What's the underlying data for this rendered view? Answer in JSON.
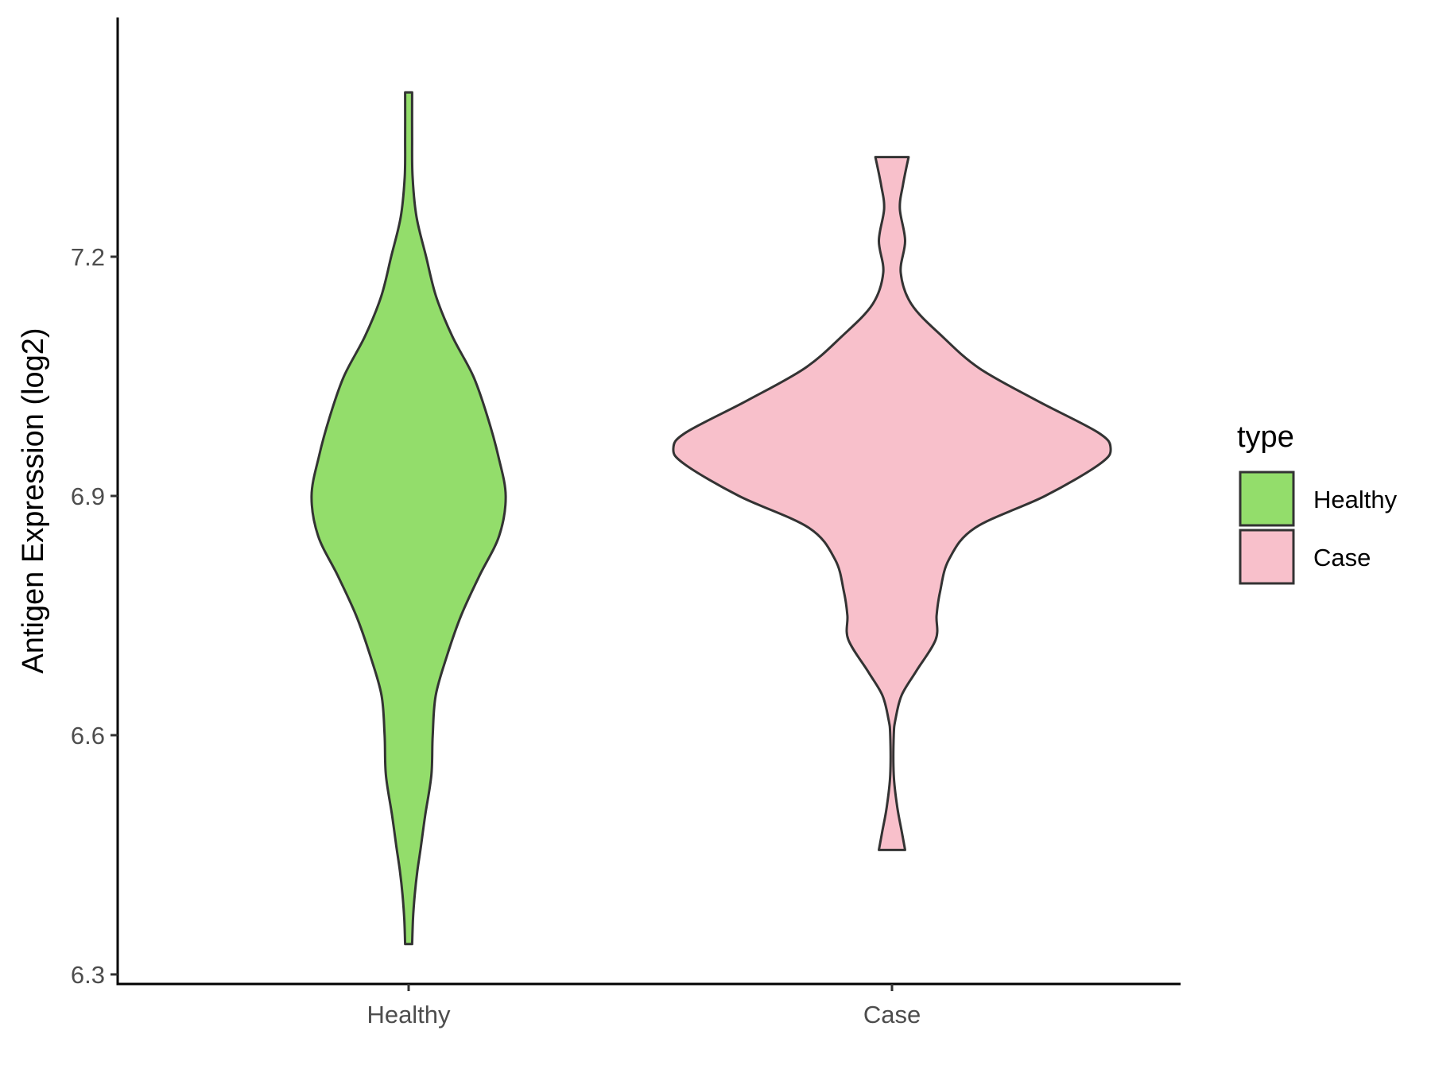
{
  "chart_data": {
    "type": "violin",
    "ylabel": "Antigen Expression (log2)",
    "xlabel": "",
    "categories": [
      "Healthy",
      "Case"
    ],
    "ylim": [
      6.288,
      7.5
    ],
    "yticks": [
      6.3,
      6.6,
      6.9,
      7.2
    ],
    "ytick_labels": [
      "6.3",
      "6.6",
      "6.9",
      "7.2"
    ],
    "grid": false,
    "legend": {
      "title": "type",
      "position": "right",
      "entries": [
        {
          "label": "Healthy",
          "color": "#93DD6B"
        },
        {
          "label": "Case",
          "color": "#F8C0CB"
        }
      ]
    },
    "series": [
      {
        "name": "Healthy",
        "color": "#93DD6B",
        "min": 6.338,
        "max": 7.406,
        "density": [
          [
            6.338,
            0.008
          ],
          [
            6.37,
            0.01
          ],
          [
            6.4,
            0.014
          ],
          [
            6.43,
            0.02
          ],
          [
            6.46,
            0.028
          ],
          [
            6.5,
            0.038
          ],
          [
            6.55,
            0.052
          ],
          [
            6.6,
            0.055
          ],
          [
            6.65,
            0.062
          ],
          [
            6.7,
            0.088
          ],
          [
            6.75,
            0.12
          ],
          [
            6.8,
            0.162
          ],
          [
            6.85,
            0.207
          ],
          [
            6.9,
            0.222
          ],
          [
            6.95,
            0.205
          ],
          [
            7.0,
            0.18
          ],
          [
            7.05,
            0.148
          ],
          [
            7.1,
            0.1
          ],
          [
            7.15,
            0.063
          ],
          [
            7.2,
            0.04
          ],
          [
            7.25,
            0.018
          ],
          [
            7.3,
            0.009
          ],
          [
            7.35,
            0.008
          ],
          [
            7.406,
            0.008
          ]
        ]
      },
      {
        "name": "Case",
        "color": "#F8C0CB",
        "min": 6.456,
        "max": 7.325,
        "density": [
          [
            6.456,
            0.03
          ],
          [
            6.48,
            0.022
          ],
          [
            6.51,
            0.012
          ],
          [
            6.55,
            0.004
          ],
          [
            6.6,
            0.004
          ],
          [
            6.62,
            0.008
          ],
          [
            6.65,
            0.022
          ],
          [
            6.68,
            0.055
          ],
          [
            6.72,
            0.1
          ],
          [
            6.75,
            0.102
          ],
          [
            6.78,
            0.11
          ],
          [
            6.82,
            0.13
          ],
          [
            6.86,
            0.19
          ],
          [
            6.9,
            0.35
          ],
          [
            6.94,
            0.475
          ],
          [
            6.96,
            0.5
          ],
          [
            6.98,
            0.47
          ],
          [
            7.02,
            0.33
          ],
          [
            7.06,
            0.2
          ],
          [
            7.1,
            0.115
          ],
          [
            7.14,
            0.045
          ],
          [
            7.18,
            0.02
          ],
          [
            7.22,
            0.03
          ],
          [
            7.26,
            0.018
          ],
          [
            7.29,
            0.025
          ],
          [
            7.325,
            0.038
          ]
        ]
      }
    ]
  }
}
